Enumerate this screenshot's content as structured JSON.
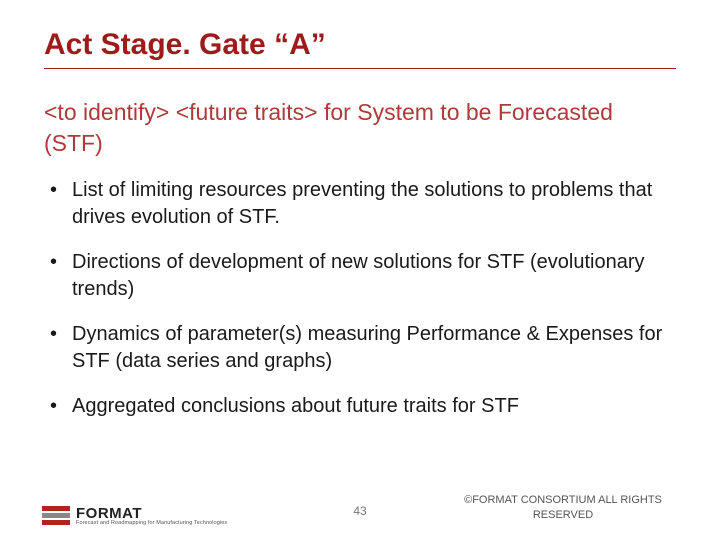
{
  "title": "Act Stage. Gate “A”",
  "subtitle": "<to identify> <future traits> for System to be Forecasted (STF)",
  "bullets": [
    "List of limiting resources preventing the solutions to problems that drives evolution of STF.",
    "Directions of development of new solutions for STF (evolutionary trends)",
    "Dynamics of parameter(s) measuring Performance & Expenses for STF (data series and graphs)",
    "Aggregated conclusions about future traits for STF"
  ],
  "logo": {
    "main": "FORMAT",
    "sub": "Forecast and Roadmapping for Manufacturing Technologies"
  },
  "page_number": "43",
  "copyright": "©FORMAT CONSORTIUM  ALL RIGHTS RESERVED",
  "colors": {
    "title": "#9e1b1b",
    "subtitle": "#b03a3a",
    "body": "#1a1a1a",
    "logo_red": "#b22222",
    "logo_grey": "#888888"
  }
}
